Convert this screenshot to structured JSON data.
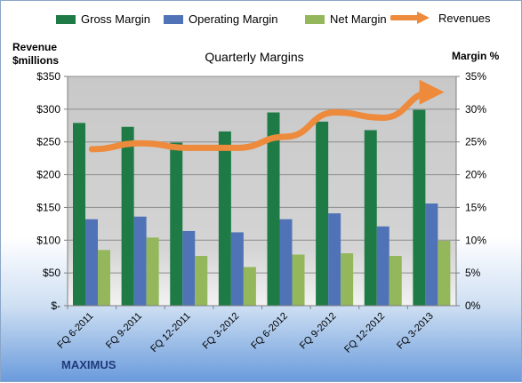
{
  "brand": "MAXIMUS",
  "legend": [
    {
      "name": "Gross Margin",
      "color": "#1e7b45"
    },
    {
      "name": "Operating Margin",
      "color": "#4f73b6"
    },
    {
      "name": "Net Margin",
      "color": "#93b75a"
    },
    {
      "name": "Revenues",
      "color": "#ed8a3c"
    }
  ],
  "chart_data": {
    "type": "bar",
    "title": "Quarterly Margins",
    "ylabel_left": "Revenue $millions",
    "ylabel_right": "Margin %",
    "categories": [
      "FQ 6-2011",
      "FQ 9-2011",
      "FQ 12-2011",
      "FQ 3-2012",
      "FQ 6-2012",
      "FQ 9-2012",
      "FQ 12-2012",
      "FQ 3-2013"
    ],
    "y_left_ticks": [
      "$-",
      "$50",
      "$100",
      "$150",
      "$200",
      "$250",
      "$300",
      "$350"
    ],
    "y_right_ticks": [
      "0%",
      "5%",
      "10%",
      "15%",
      "20%",
      "25%",
      "30%",
      "35%"
    ],
    "ylim_left": [
      0,
      350
    ],
    "ylim_right": [
      0,
      35
    ],
    "series": [
      {
        "name": "Gross Margin",
        "axis": "right",
        "unit": "%",
        "values": [
          27.9,
          27.3,
          24.9,
          26.6,
          29.5,
          28.1,
          26.8,
          29.9
        ],
        "color": "#1e7b45"
      },
      {
        "name": "Operating Margin",
        "axis": "right",
        "unit": "%",
        "values": [
          13.2,
          13.6,
          11.4,
          11.2,
          13.2,
          14.1,
          12.1,
          15.6
        ],
        "color": "#4f73b6"
      },
      {
        "name": "Net Margin",
        "axis": "right",
        "unit": "%",
        "values": [
          8.5,
          10.4,
          7.6,
          5.9,
          7.8,
          8.0,
          7.6,
          9.9
        ],
        "color": "#93b75a"
      }
    ],
    "line_series": {
      "name": "Revenues",
      "axis": "left",
      "unit": "$millions",
      "values": [
        239,
        248,
        241,
        241,
        258,
        295,
        287,
        326
      ],
      "color": "#ed8a3c"
    },
    "grid": true,
    "legend_position": "top"
  }
}
